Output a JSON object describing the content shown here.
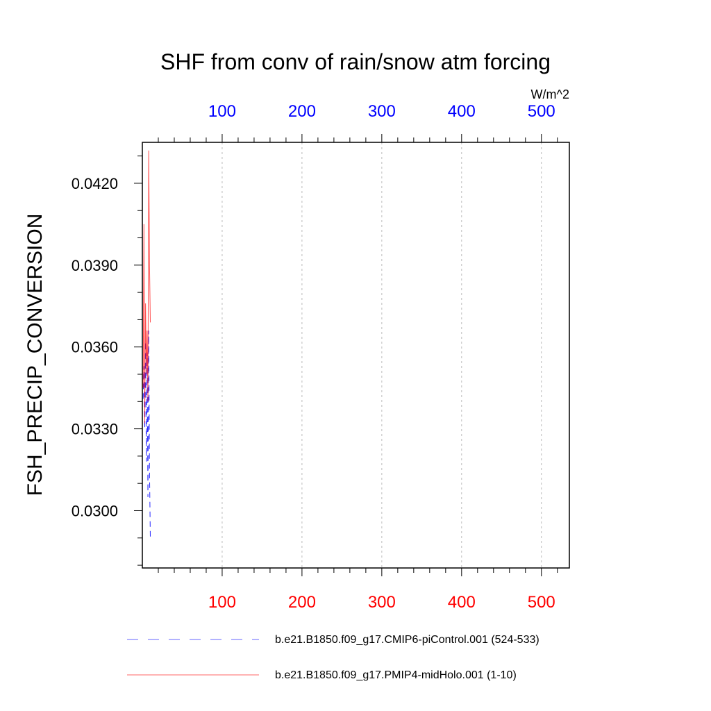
{
  "chart_data": {
    "type": "line",
    "title": "SHF from conv of rain/snow atm forcing",
    "ylabel": "FSH_PRECIP_CONVERSION",
    "units": "W/m^2",
    "xlim": [
      0,
      535
    ],
    "ylim": [
      0.0279,
      0.0435
    ],
    "x_ticks": [
      100,
      200,
      300,
      400,
      500
    ],
    "x_tick_labels": [
      "100",
      "200",
      "300",
      "400",
      "500"
    ],
    "y_ticks": [
      0.03,
      0.033,
      0.036,
      0.039,
      0.042
    ],
    "y_tick_labels": [
      "0.0300",
      "0.0330",
      "0.0360",
      "0.0390",
      "0.0420"
    ],
    "top_axis_color": "#0000ff",
    "bottom_axis_color": "#ff0000",
    "grid": true,
    "legend_position": "bottom",
    "series": [
      {
        "name": "b.e21.B1850.f09_g17.CMIP6-piControl.001 (524-533)",
        "color": "#0000ff",
        "style": "dashed",
        "x": [
          1,
          2,
          3,
          4,
          5,
          6,
          7,
          8,
          9,
          10
        ],
        "y": [
          0.0341,
          0.0353,
          0.033,
          0.0362,
          0.0318,
          0.0358,
          0.0305,
          0.0366,
          0.0314,
          0.029
        ]
      },
      {
        "name": "b.e21.B1850.f09_g17.PMIP4-midHolo.001 (1-10)",
        "color": "#ff0000",
        "style": "solid",
        "x": [
          1,
          2,
          3,
          4,
          5,
          6,
          7,
          8,
          9,
          10
        ],
        "y": [
          0.0345,
          0.0405,
          0.0332,
          0.0376,
          0.035,
          0.0366,
          0.034,
          0.0432,
          0.039,
          0.0369
        ]
      }
    ]
  }
}
